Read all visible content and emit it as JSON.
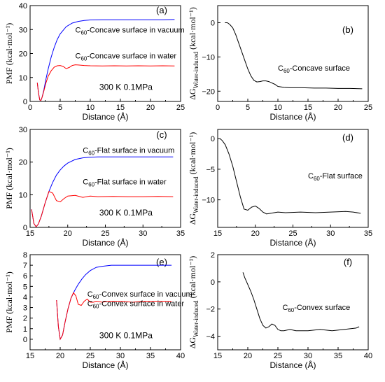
{
  "chart_data": [
    {
      "type": "line",
      "panel": "(a)",
      "xlabel": "Distance (Å)",
      "ylabel": "PMF (kcal·mol⁻¹)",
      "xlim": [
        0,
        25
      ],
      "ylim": [
        0,
        40
      ],
      "xticks": [
        0,
        5,
        10,
        15,
        20,
        25
      ],
      "yticks": [
        0,
        10,
        20,
        30,
        40
      ],
      "annotation": "300 K  0.1MPa",
      "series": [
        {
          "name": "C60-Concave surface in vacuum",
          "label_base": "C",
          "label_sub": "60",
          "label_rest": "-Concave surface in vacuum",
          "color": "#0000ff",
          "x": [
            1.2,
            1.4,
            1.6,
            1.8,
            2.0,
            2.3,
            2.6,
            3.0,
            3.5,
            4.0,
            4.5,
            5.0,
            6.0,
            7.0,
            8.0,
            9.0,
            10,
            12,
            14,
            16,
            18,
            20,
            22,
            24
          ],
          "y": [
            7.8,
            3.5,
            0.6,
            0.4,
            1.8,
            5.0,
            9.0,
            13.5,
            18.5,
            22.5,
            25.8,
            28.2,
            31.2,
            32.7,
            33.4,
            33.8,
            34.0,
            34.1,
            34.1,
            34.1,
            34.1,
            34.1,
            34.1,
            34.2
          ]
        },
        {
          "name": "C60-Concave surface in water",
          "label_base": "C",
          "label_sub": "60",
          "label_rest": "-Concave surface in water",
          "color": "#ff0000",
          "x": [
            1.2,
            1.4,
            1.6,
            1.8,
            2.0,
            2.3,
            2.6,
            3.0,
            3.5,
            4.0,
            4.5,
            5.0,
            5.5,
            6.0,
            6.5,
            7.0,
            7.5,
            8.0,
            9.0,
            10,
            12,
            14,
            16,
            18,
            20,
            22,
            24
          ],
          "y": [
            7.8,
            3.5,
            0.6,
            0.4,
            1.8,
            4.5,
            7.5,
            10.5,
            12.8,
            14.3,
            14.9,
            15.0,
            14.6,
            13.7,
            14.2,
            15.0,
            15.3,
            15.2,
            15.0,
            14.9,
            14.8,
            14.9,
            14.8,
            14.9,
            14.8,
            14.9,
            14.8
          ]
        }
      ]
    },
    {
      "type": "line",
      "panel": "(b)",
      "xlabel": "Distance (Å)",
      "ylabel": "ΔG Water-induced (kcal·mol⁻¹)",
      "ylabel_base": "ΔG",
      "ylabel_sub": "Water-induced",
      "ylabel_unit": " (kcal·mol⁻¹)",
      "xlim": [
        0,
        25
      ],
      "ylim": [
        -23,
        5
      ],
      "xticks": [
        0,
        5,
        10,
        15,
        20,
        25
      ],
      "yticks": [
        0,
        -10,
        -20
      ],
      "series": [
        {
          "name": "C60-Concave surface",
          "label_base": "C",
          "label_sub": "60",
          "label_rest": "-Concave surface",
          "color": "#000000",
          "x": [
            1.2,
            1.6,
            2.0,
            2.5,
            3.0,
            3.5,
            4.0,
            4.5,
            5.0,
            5.5,
            6.0,
            6.5,
            7.0,
            7.5,
            8.0,
            8.5,
            9.0,
            9.5,
            10,
            11,
            12,
            14,
            16,
            18,
            20,
            22,
            24
          ],
          "y": [
            0,
            0,
            -0.5,
            -1.5,
            -3.5,
            -6.0,
            -8.5,
            -11.0,
            -13.5,
            -15.5,
            -16.8,
            -17.3,
            -17.2,
            -17.0,
            -17.0,
            -17.2,
            -17.6,
            -18.0,
            -18.6,
            -18.9,
            -19.0,
            -19.0,
            -19.1,
            -19.1,
            -19.2,
            -19.2,
            -19.3
          ]
        }
      ]
    },
    {
      "type": "line",
      "panel": "(c)",
      "xlabel": "Distance (Å)",
      "ylabel": "PMF (kcal·mol⁻¹)",
      "xlim": [
        15,
        35
      ],
      "ylim": [
        0,
        30
      ],
      "xticks": [
        15,
        20,
        25,
        30,
        35
      ],
      "yticks": [
        0,
        10,
        20,
        30
      ],
      "annotation": "300 K  0.1MPa",
      "series": [
        {
          "name": "C60-Flat surface in vacuum",
          "label_base": "C",
          "label_sub": "60",
          "label_rest": "-Flat surface in vacuum",
          "color": "#0000ff",
          "x": [
            15.2,
            15.5,
            15.8,
            16.1,
            16.5,
            17.0,
            17.5,
            18.0,
            18.5,
            19.0,
            19.5,
            20.0,
            21.0,
            22.0,
            23.0,
            24,
            26,
            28,
            30,
            32,
            34
          ],
          "y": [
            5.5,
            1.2,
            0.2,
            1.0,
            3.5,
            7.5,
            11.0,
            13.8,
            16.0,
            17.6,
            18.8,
            19.7,
            20.8,
            21.3,
            21.5,
            21.6,
            21.6,
            21.6,
            21.6,
            21.6,
            21.6
          ]
        },
        {
          "name": "C60-Flat surface in water",
          "label_base": "C",
          "label_sub": "60",
          "label_rest": "-Flat surface in water",
          "color": "#ff0000",
          "x": [
            15.2,
            15.5,
            15.8,
            16.1,
            16.5,
            17.0,
            17.5,
            18.0,
            18.5,
            19.0,
            19.5,
            20.0,
            21.0,
            22.0,
            23.0,
            24,
            26,
            28,
            30,
            32,
            34
          ],
          "y": [
            5.5,
            1.2,
            0.2,
            1.0,
            3.5,
            7.5,
            11.0,
            10.5,
            8.2,
            7.8,
            8.8,
            9.6,
            9.8,
            9.2,
            9.6,
            9.4,
            9.5,
            9.4,
            9.4,
            9.5,
            9.4
          ]
        }
      ]
    },
    {
      "type": "line",
      "panel": "(d)",
      "xlabel": "Distance (Å)",
      "ylabel": "ΔG Water-induced (kcal·mol⁻¹)",
      "ylabel_base": "ΔG",
      "ylabel_sub": "Water-induced",
      "ylabel_unit": " (kcal·mol⁻¹)",
      "xlim": [
        15,
        35
      ],
      "ylim": [
        -14.5,
        1.5
      ],
      "xticks": [
        15,
        20,
        25,
        30,
        35
      ],
      "yticks": [
        0,
        -5,
        -10
      ],
      "series": [
        {
          "name": "C60-Flat surface",
          "label_base": "C",
          "label_sub": "60",
          "label_rest": "-Flat surface",
          "color": "#000000",
          "x": [
            15.3,
            15.6,
            16.0,
            16.5,
            17.0,
            17.5,
            18.0,
            18.5,
            19.0,
            19.5,
            20.0,
            20.5,
            21.0,
            21.5,
            22.0,
            23.0,
            24,
            26,
            28,
            30,
            32,
            33,
            34
          ],
          "y": [
            0,
            -0.3,
            -1.0,
            -2.5,
            -4.5,
            -7.0,
            -9.5,
            -11.5,
            -11.7,
            -11.2,
            -11.0,
            -11.4,
            -12.0,
            -12.3,
            -12.2,
            -12.0,
            -12.1,
            -12.0,
            -12.1,
            -12.0,
            -11.9,
            -12.0,
            -12.2
          ]
        }
      ]
    },
    {
      "type": "line",
      "panel": "(e)",
      "xlabel": "Distance (Å)",
      "ylabel": "PMF (kcal·mol⁻¹)",
      "xlim": [
        15,
        40
      ],
      "ylim": [
        -1,
        8
      ],
      "xticks": [
        15,
        20,
        25,
        30,
        35,
        40
      ],
      "yticks": [
        0,
        1,
        2,
        3,
        4,
        5,
        6,
        7,
        8
      ],
      "annotation": "300 K  0.1MPa",
      "series": [
        {
          "name": "C60-Convex surface in vacuum",
          "label_base": "C",
          "label_sub": "60",
          "label_rest": "-Convex surface in vacuum",
          "color": "#0000ff",
          "x": [
            19.4,
            19.7,
            20.0,
            20.4,
            20.8,
            21.3,
            21.8,
            22.4,
            23.0,
            23.6,
            24.2,
            25.0,
            26.0,
            27.0,
            28.5,
            30,
            32,
            34,
            36,
            38.5
          ],
          "y": [
            3.7,
            1.2,
            0,
            0.4,
            1.6,
            2.9,
            3.9,
            4.6,
            5.2,
            5.7,
            6.1,
            6.5,
            6.8,
            6.9,
            7.0,
            7.0,
            7.0,
            7.0,
            7.0,
            7.0
          ]
        },
        {
          "name": "C60-Convex surface in water",
          "label_base": "C",
          "label_sub": "60",
          "label_rest": "-Convex surface in water",
          "color": "#ff0000",
          "x": [
            19.4,
            19.7,
            20.0,
            20.4,
            20.8,
            21.3,
            21.8,
            22.2,
            22.6,
            23.0,
            23.5,
            24.0,
            24.5,
            25.0,
            25.5,
            26.0,
            27.0,
            28.0,
            30,
            32,
            34,
            36,
            38.5
          ],
          "y": [
            3.7,
            1.2,
            0,
            0.4,
            1.6,
            2.9,
            3.9,
            4.4,
            4.1,
            3.3,
            3.2,
            3.6,
            3.8,
            3.5,
            3.5,
            3.6,
            3.5,
            3.6,
            3.6,
            3.5,
            3.6,
            3.6,
            3.6
          ]
        }
      ]
    },
    {
      "type": "line",
      "panel": "(f)",
      "xlabel": "Distance (Å)",
      "ylabel": "ΔG Water-induced (kcal·mol⁻¹)",
      "ylabel_base": "ΔG",
      "ylabel_sub": "Water-induced",
      "ylabel_unit": " (kcal·mol⁻¹)",
      "xlim": [
        15,
        40
      ],
      "ylim": [
        -5,
        2
      ],
      "xticks": [
        15,
        20,
        25,
        30,
        35,
        40
      ],
      "yticks": [
        2,
        0,
        -2,
        -4
      ],
      "series": [
        {
          "name": "C60-Convex surface",
          "label_base": "C",
          "label_sub": "60",
          "label_rest": "-Convex surface",
          "color": "#000000",
          "x": [
            19.2,
            19.5,
            20.0,
            20.5,
            21.0,
            21.5,
            22.0,
            22.5,
            23.0,
            23.5,
            24.0,
            24.5,
            25.0,
            25.5,
            26.0,
            27,
            28,
            30,
            32,
            34,
            36,
            38,
            38.5
          ],
          "y": [
            0.7,
            0.3,
            -0.2,
            -0.7,
            -1.3,
            -2.0,
            -2.7,
            -3.2,
            -3.4,
            -3.3,
            -3.1,
            -3.2,
            -3.5,
            -3.6,
            -3.6,
            -3.5,
            -3.6,
            -3.6,
            -3.5,
            -3.6,
            -3.5,
            -3.4,
            -3.3
          ]
        }
      ]
    }
  ]
}
